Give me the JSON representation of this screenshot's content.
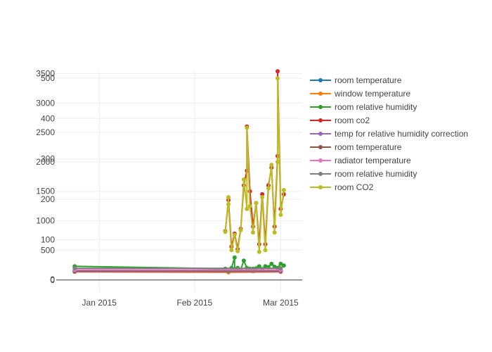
{
  "chart_data": {
    "type": "line",
    "x_axis": {
      "type": "date",
      "range": [
        "2014-12-18",
        "2015-03-08"
      ],
      "ticks": [
        {
          "date": "2015-01-01",
          "label": "Jan 2015"
        },
        {
          "date": "2015-02-01",
          "label": "Feb 2015"
        },
        {
          "date": "2015-03-01",
          "label": "Mar 2015"
        }
      ],
      "grid": true
    },
    "y_axes": [
      {
        "name": "y1",
        "range": [
          -30,
          519
        ],
        "ticks": [
          0,
          100,
          200,
          300,
          400,
          500
        ],
        "grid": true
      },
      {
        "name": "y2",
        "range": [
          -215,
          3555
        ],
        "ticks": [
          0,
          500,
          1000,
          1500,
          2000,
          2500,
          3000,
          3500
        ],
        "grid": true
      }
    ],
    "legend_position": "right",
    "series": [
      {
        "name": "room temperature",
        "color": "#1f77b4",
        "axis": "y1",
        "points": [
          [
            "2014-12-24",
            22
          ],
          [
            "2015-02-12",
            21
          ],
          [
            "2015-02-20",
            22
          ],
          [
            "2015-03-01",
            22
          ]
        ]
      },
      {
        "name": "window temperature",
        "color": "#ff7f0e",
        "axis": "y1",
        "points": [
          [
            "2014-12-24",
            20
          ],
          [
            "2015-02-12",
            19
          ],
          [
            "2015-03-01",
            20
          ]
        ]
      },
      {
        "name": "room relative humidity",
        "color": "#2ca02c",
        "axis": "y1",
        "points": [
          [
            "2014-12-24",
            34
          ],
          [
            "2015-02-11",
            28
          ],
          [
            "2015-02-12",
            22
          ],
          [
            "2015-02-13",
            30
          ],
          [
            "2015-02-14",
            56
          ],
          [
            "2015-02-14",
            27
          ],
          [
            "2015-02-15",
            30
          ],
          [
            "2015-02-16",
            26
          ],
          [
            "2015-02-17",
            48
          ],
          [
            "2015-02-18",
            30
          ],
          [
            "2015-02-19",
            28
          ],
          [
            "2015-02-20",
            28
          ],
          [
            "2015-02-21",
            29
          ],
          [
            "2015-02-22",
            34
          ],
          [
            "2015-02-23",
            27
          ],
          [
            "2015-02-24",
            34
          ],
          [
            "2015-02-25",
            32
          ],
          [
            "2015-02-26",
            40
          ],
          [
            "2015-02-27",
            33
          ],
          [
            "2015-02-28",
            30
          ],
          [
            "2015-03-01",
            40
          ],
          [
            "2015-03-02",
            36
          ]
        ]
      },
      {
        "name": "room co2",
        "color": "#d62728",
        "axis": "y2",
        "points": [
          [
            "2015-02-11",
            820
          ],
          [
            "2015-02-12",
            1350
          ],
          [
            "2015-02-13",
            560
          ],
          [
            "2015-02-14",
            780
          ],
          [
            "2015-02-15",
            520
          ],
          [
            "2015-02-16",
            860
          ],
          [
            "2015-02-17",
            1600
          ],
          [
            "2015-02-18",
            1850
          ],
          [
            "2015-02-18",
            2600
          ],
          [
            "2015-02-19",
            1500
          ],
          [
            "2015-02-20",
            900
          ],
          [
            "2015-02-21",
            1300
          ],
          [
            "2015-02-22",
            600
          ],
          [
            "2015-02-23",
            1450
          ],
          [
            "2015-02-24",
            600
          ],
          [
            "2015-02-25",
            1600
          ],
          [
            "2015-02-26",
            1900
          ],
          [
            "2015-02-27",
            900
          ],
          [
            "2015-02-28",
            2100
          ],
          [
            "2015-02-28",
            3540
          ],
          [
            "2015-03-01",
            1200
          ],
          [
            "2015-03-02",
            1450
          ]
        ]
      },
      {
        "name": "temp for relative humidity correction",
        "color": "#9467bd",
        "axis": "y1",
        "points": [
          [
            "2014-12-24",
            21
          ],
          [
            "2015-03-01",
            21
          ]
        ]
      },
      {
        "name": "room temperature",
        "color": "#8c564b",
        "axis": "y1",
        "points": [
          [
            "2014-12-24",
            23
          ],
          [
            "2015-03-01",
            23
          ]
        ]
      },
      {
        "name": "radiator temperature",
        "color": "#e377c2",
        "axis": "y1",
        "points": [
          [
            "2014-12-24",
            25
          ],
          [
            "2015-03-01",
            25
          ]
        ]
      },
      {
        "name": "room relative humidity",
        "color": "#7f7f7f",
        "axis": "y1",
        "points": [
          [
            "2014-12-24",
            29
          ],
          [
            "2015-03-01",
            29
          ]
        ]
      },
      {
        "name": "room CO2",
        "color": "#bcbd22",
        "axis": "y2",
        "points": [
          [
            "2015-02-11",
            810
          ],
          [
            "2015-02-12",
            1400
          ],
          [
            "2015-02-12",
            1280
          ],
          [
            "2015-02-13",
            500
          ],
          [
            "2015-02-14",
            760
          ],
          [
            "2015-02-15",
            480
          ],
          [
            "2015-02-16",
            840
          ],
          [
            "2015-02-17",
            1700
          ],
          [
            "2015-02-18",
            1200
          ],
          [
            "2015-02-18",
            2580
          ],
          [
            "2015-02-19",
            1250
          ],
          [
            "2015-02-20",
            800
          ],
          [
            "2015-02-21",
            1300
          ],
          [
            "2015-02-22",
            470
          ],
          [
            "2015-02-23",
            1400
          ],
          [
            "2015-02-24",
            500
          ],
          [
            "2015-02-25",
            1550
          ],
          [
            "2015-02-26",
            1950
          ],
          [
            "2015-02-27",
            800
          ],
          [
            "2015-02-28",
            2000
          ],
          [
            "2015-02-28",
            3420
          ],
          [
            "2015-03-01",
            1100
          ],
          [
            "2015-03-02",
            1520
          ]
        ]
      }
    ]
  }
}
